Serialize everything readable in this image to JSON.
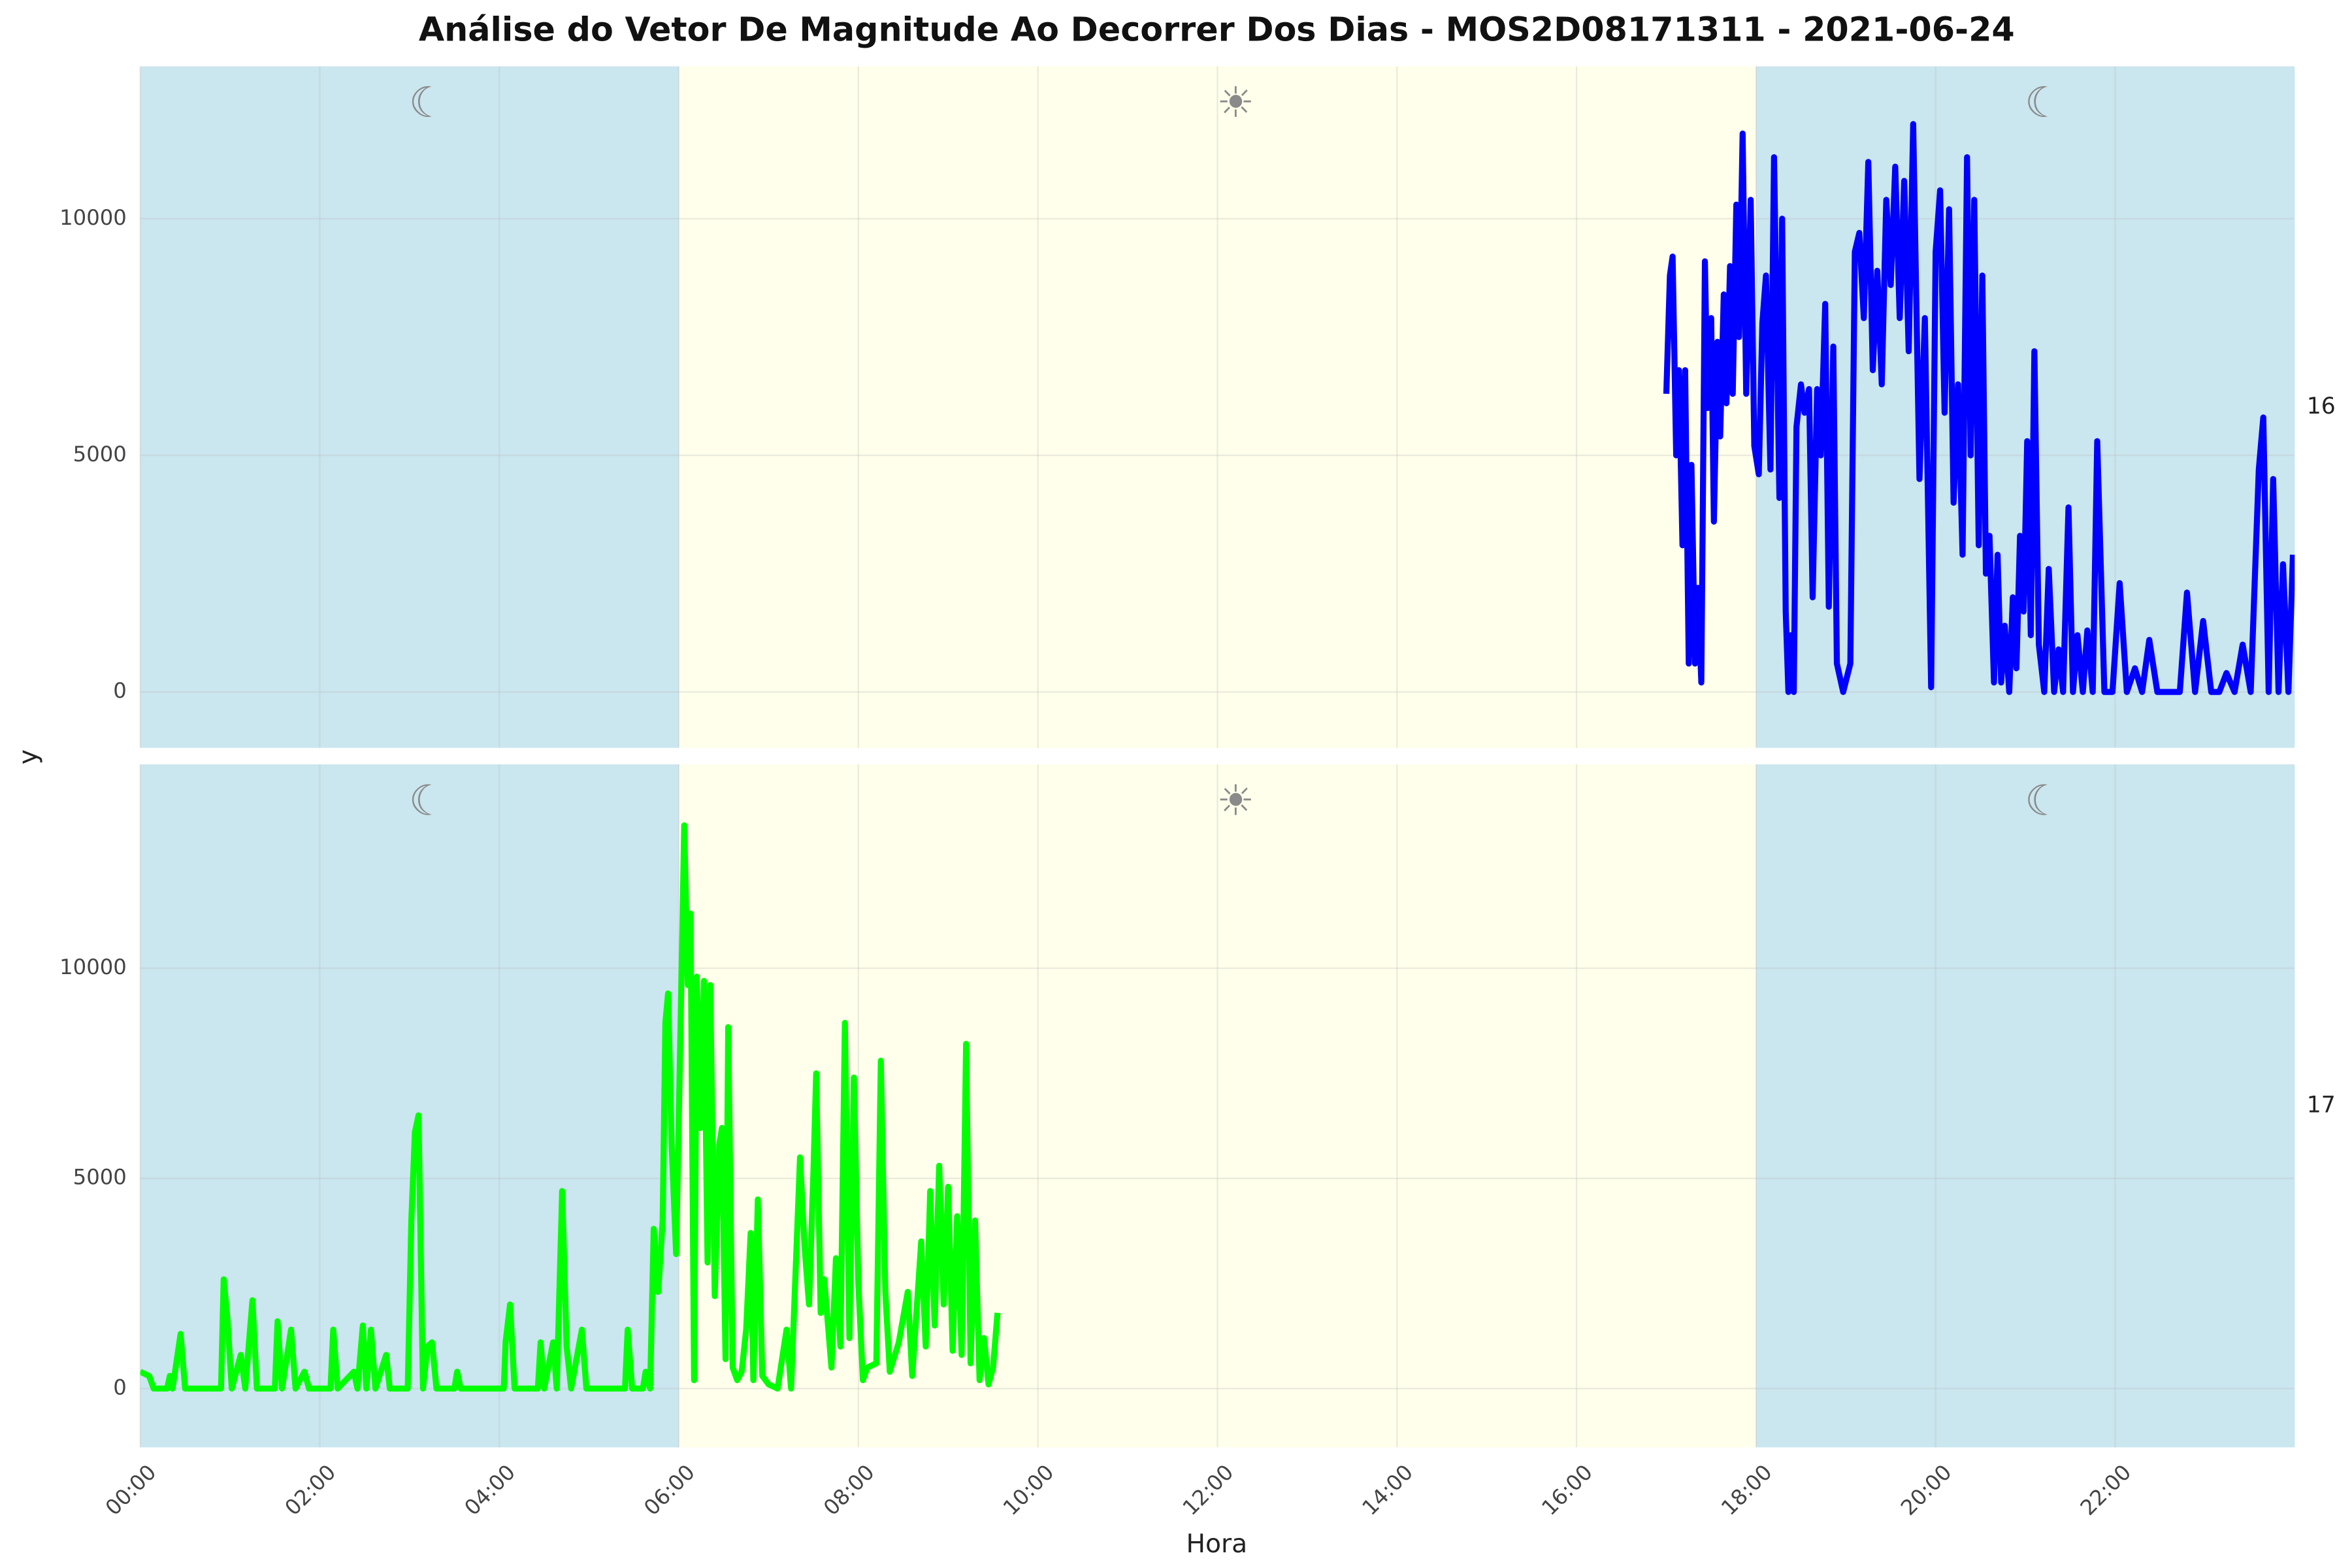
{
  "chart_data": {
    "type": "line",
    "title": "Análise do Vetor De Magnitude Ao Decorrer Dos Dias - MOS2D08171311 - 2021-06-24",
    "x_label": "Hora",
    "y_label": "y",
    "xlim": [
      0,
      24
    ],
    "xticks": [
      {
        "value": 0,
        "label": "00:00"
      },
      {
        "value": 2,
        "label": "02:00"
      },
      {
        "value": 4,
        "label": "04:00"
      },
      {
        "value": 6,
        "label": "06:00"
      },
      {
        "value": 8,
        "label": "08:00"
      },
      {
        "value": 10,
        "label": "10:00"
      },
      {
        "value": 12,
        "label": "12:00"
      },
      {
        "value": 14,
        "label": "14:00"
      },
      {
        "value": 16,
        "label": "16:00"
      },
      {
        "value": 18,
        "label": "18:00"
      },
      {
        "value": 20,
        "label": "20:00"
      },
      {
        "value": 22,
        "label": "22:00"
      }
    ],
    "grid": true,
    "periods": [
      {
        "start": 0,
        "end": 6,
        "icon": "☾",
        "color": "#add8e6"
      },
      {
        "start": 6,
        "end": 18,
        "icon": "☀",
        "color": "#ffffe0"
      },
      {
        "start": 18,
        "end": 24,
        "icon": "☾",
        "color": "#add8e6"
      }
    ],
    "panels": [
      {
        "facet": "16",
        "ylim": [
          -1180,
          13220
        ],
        "yticks": [
          0,
          5000,
          10000
        ],
        "series": [
          {
            "color": "#0000ff",
            "x": [
              17.0,
              17.04,
              17.07,
              17.11,
              17.14,
              17.18,
              17.21,
              17.25,
              17.28,
              17.32,
              17.35,
              17.39,
              17.43,
              17.46,
              17.5,
              17.53,
              17.57,
              17.6,
              17.64,
              17.67,
              17.71,
              17.74,
              17.78,
              17.81,
              17.85,
              17.89,
              17.94,
              17.98,
              18.03,
              18.07,
              18.11,
              18.16,
              18.2,
              18.23,
              18.26,
              18.29,
              18.33,
              18.36,
              18.39,
              18.42,
              18.45,
              18.5,
              18.54,
              18.59,
              18.63,
              18.68,
              18.72,
              18.77,
              18.81,
              18.86,
              18.9,
              18.97,
              19.05,
              19.1,
              19.15,
              19.2,
              19.25,
              19.3,
              19.35,
              19.4,
              19.45,
              19.5,
              19.55,
              19.6,
              19.65,
              19.7,
              19.75,
              19.82,
              19.88,
              19.95,
              20.0,
              20.05,
              20.1,
              20.15,
              20.2,
              20.25,
              20.3,
              20.35,
              20.39,
              20.43,
              20.48,
              20.52,
              20.56,
              20.6,
              20.65,
              20.69,
              20.73,
              20.77,
              20.82,
              20.86,
              20.9,
              20.94,
              20.98,
              21.02,
              21.06,
              21.1,
              21.15,
              21.21,
              21.26,
              21.32,
              21.37,
              21.42,
              21.48,
              21.53,
              21.58,
              21.64,
              21.69,
              21.75,
              21.8,
              21.88,
              21.97,
              22.05,
              22.13,
              22.22,
              22.3,
              22.38,
              22.47,
              22.55,
              22.63,
              22.72,
              22.8,
              22.89,
              22.98,
              23.07,
              23.16,
              23.24,
              23.33,
              23.42,
              23.51,
              23.6,
              23.65,
              23.71,
              23.76,
              23.82,
              23.87,
              23.93,
              23.98
            ],
            "values": [
              6300,
              8800,
              9200,
              5000,
              6800,
              3100,
              6800,
              600,
              4800,
              600,
              2200,
              200,
              9100,
              6000,
              7900,
              3600,
              7400,
              5400,
              8400,
              6100,
              9000,
              6300,
              10300,
              7500,
              11800,
              6300,
              10400,
              5200,
              4600,
              7800,
              8800,
              4700,
              11300,
              7700,
              4100,
              10000,
              1700,
              0,
              1200,
              0,
              5600,
              6500,
              5900,
              6400,
              2000,
              6400,
              5000,
              8200,
              1800,
              7300,
              600,
              0,
              600,
              9300,
              9700,
              7900,
              11200,
              6800,
              8900,
              6500,
              10400,
              8600,
              11100,
              7900,
              10800,
              7200,
              12000,
              4500,
              7900,
              100,
              9300,
              10600,
              5900,
              10200,
              4000,
              6500,
              2900,
              11300,
              5000,
              10400,
              3100,
              8800,
              2500,
              3300,
              200,
              2900,
              200,
              1400,
              0,
              2000,
              500,
              3300,
              1700,
              5300,
              1200,
              7200,
              1000,
              0,
              2600,
              0,
              900,
              0,
              3900,
              0,
              1200,
              0,
              1300,
              0,
              5300,
              0,
              0,
              2300,
              0,
              500,
              0,
              1100,
              0,
              0,
              0,
              0,
              2100,
              0,
              1500,
              0,
              0,
              400,
              0,
              1000,
              0,
              4700,
              5800,
              0,
              4500,
              0,
              2700,
              0,
              2900
            ]
          }
        ]
      },
      {
        "facet": "17",
        "ylim": [
          -1400,
          14850
        ],
        "yticks": [
          0,
          5000,
          10000
        ],
        "series": [
          {
            "color": "#00ff00",
            "x": [
              0.0,
              0.1,
              0.15,
              0.3,
              0.33,
              0.36,
              0.45,
              0.5,
              0.9,
              0.93,
              0.97,
              1.02,
              1.12,
              1.17,
              1.25,
              1.3,
              1.5,
              1.53,
              1.58,
              1.68,
              1.73,
              1.83,
              1.88,
              2.12,
              2.15,
              2.2,
              2.38,
              2.42,
              2.48,
              2.52,
              2.57,
              2.62,
              2.74,
              2.78,
              2.98,
              3.02,
              3.06,
              3.1,
              3.15,
              3.2,
              3.25,
              3.3,
              3.5,
              3.53,
              3.57,
              4.05,
              4.07,
              4.12,
              4.17,
              4.43,
              4.46,
              4.5,
              4.6,
              4.64,
              4.7,
              4.75,
              4.8,
              4.92,
              4.97,
              5.4,
              5.43,
              5.48,
              5.6,
              5.63,
              5.68,
              5.72,
              5.77,
              5.82,
              5.85,
              5.88,
              5.92,
              5.97,
              6.02,
              6.06,
              6.1,
              6.13,
              6.17,
              6.2,
              6.24,
              6.28,
              6.32,
              6.35,
              6.4,
              6.45,
              6.48,
              6.52,
              6.55,
              6.6,
              6.65,
              6.7,
              6.75,
              6.8,
              6.83,
              6.88,
              6.93,
              7.0,
              7.1,
              7.2,
              7.25,
              7.35,
              7.4,
              7.45,
              7.5,
              7.53,
              7.58,
              7.62,
              7.7,
              7.75,
              7.8,
              7.85,
              7.9,
              7.95,
              8.0,
              8.05,
              8.1,
              8.2,
              8.25,
              8.3,
              8.35,
              8.45,
              8.55,
              8.6,
              8.7,
              8.75,
              8.8,
              8.85,
              8.9,
              8.95,
              9.0,
              9.05,
              9.1,
              9.15,
              9.2,
              9.25,
              9.3,
              9.35,
              9.4,
              9.45,
              9.5,
              9.55
            ],
            "values": [
              400,
              300,
              0,
              0,
              300,
              0,
              1300,
              0,
              0,
              2600,
              1700,
              0,
              800,
              0,
              2100,
              0,
              0,
              1600,
              0,
              1400,
              0,
              400,
              0,
              0,
              1400,
              0,
              400,
              0,
              1500,
              0,
              1400,
              0,
              800,
              0,
              0,
              4000,
              6100,
              6500,
              0,
              1000,
              1100,
              0,
              0,
              400,
              0,
              0,
              1100,
              2000,
              0,
              0,
              1100,
              0,
              1100,
              0,
              4700,
              1000,
              0,
              1400,
              0,
              0,
              1400,
              0,
              0,
              400,
              0,
              3800,
              2300,
              4000,
              8700,
              9400,
              5800,
              3200,
              8700,
              13400,
              9600,
              11300,
              200,
              9800,
              6200,
              9700,
              3000,
              9600,
              2200,
              5800,
              6200,
              700,
              8600,
              500,
              200,
              400,
              1400,
              3700,
              200,
              4500,
              300,
              100,
              0,
              1400,
              0,
              5500,
              3400,
              2000,
              5200,
              7500,
              1800,
              2600,
              500,
              3100,
              1000,
              8700,
              1200,
              7400,
              2500,
              200,
              500,
              600,
              7800,
              2300,
              400,
              1100,
              2300,
              300,
              3500,
              1000,
              4700,
              1500,
              5300,
              2000,
              4800,
              900,
              4100,
              800,
              8200,
              600,
              4000,
              200,
              1200,
              100,
              500,
              1800
            ]
          }
        ]
      }
    ]
  }
}
